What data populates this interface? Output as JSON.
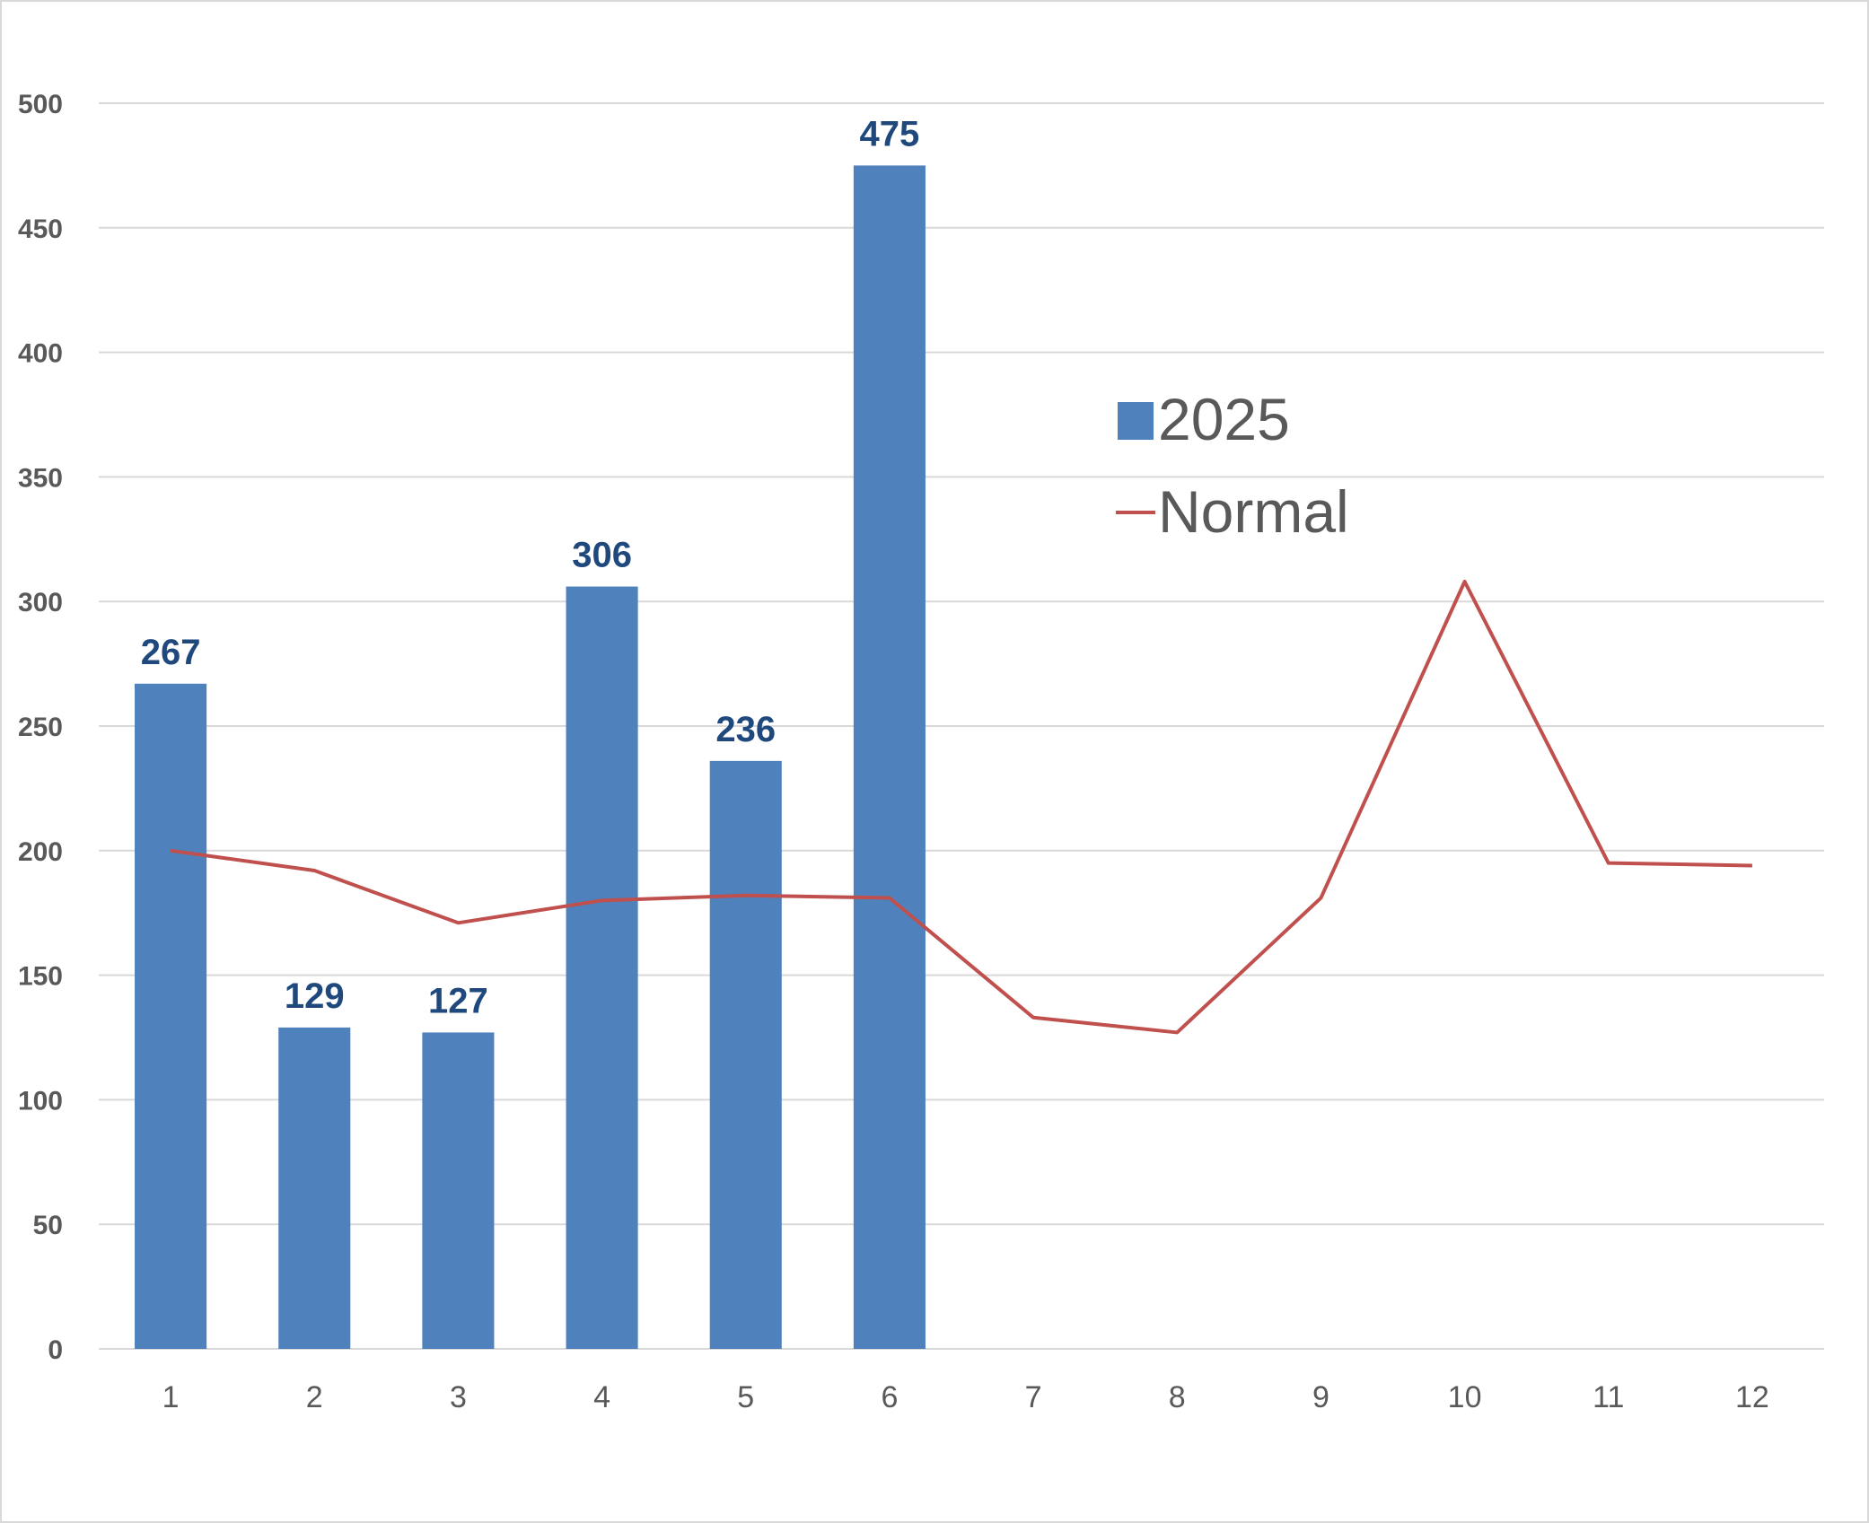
{
  "chart_data": {
    "type": "bar",
    "categories": [
      "1",
      "2",
      "3",
      "4",
      "5",
      "6",
      "7",
      "8",
      "9",
      "10",
      "11",
      "12"
    ],
    "series": [
      {
        "name": "2025",
        "kind": "bar",
        "color": "#4F81BD",
        "values": [
          267,
          129,
          127,
          306,
          236,
          475,
          null,
          null,
          null,
          null,
          null,
          null
        ],
        "data_labels": [
          "267",
          "129",
          "127",
          "306",
          "236",
          "475"
        ]
      },
      {
        "name": "Normal",
        "kind": "line",
        "color": "#C0504D",
        "values": [
          200,
          192,
          171,
          180,
          182,
          181,
          133,
          127,
          181,
          308,
          195,
          194
        ]
      }
    ],
    "title": "",
    "xlabel": "",
    "ylabel": "",
    "ylim": [
      0,
      500
    ],
    "yticks": [
      "0",
      "50",
      "100",
      "150",
      "200",
      "250",
      "300",
      "350",
      "400",
      "450",
      "500"
    ],
    "grid": true,
    "legend": "right-upper-inside",
    "data_label_color": "#1F497D",
    "gridline_color": "#D9D9D9"
  }
}
